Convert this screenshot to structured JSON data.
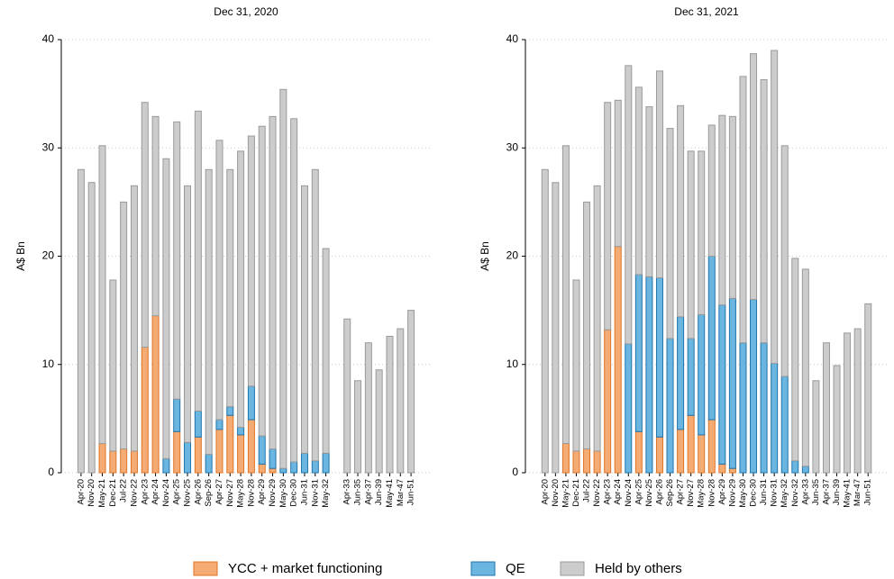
{
  "chart_data": [
    {
      "type": "bar",
      "stacked": true,
      "title": "Dec 31, 2020",
      "y_label": "A$ Bn",
      "categories": [
        "Apr-20",
        "Nov-20",
        "May-21",
        "Dec-21",
        "Jul-22",
        "Nov-22",
        "Apr-23",
        "Apr-24",
        "Nov-24",
        "Apr-25",
        "Nov-25",
        "Apr-26",
        "Sep-26",
        "Apr-27",
        "Nov-27",
        "May-28",
        "Nov-28",
        "Apr-29",
        "Nov-29",
        "May-30",
        "Dec-30",
        "Jun-31",
        "Nov-31",
        "May-32",
        null,
        "Apr-33",
        "Jun-35",
        "Apr-37",
        "Jun-39",
        "May-41",
        "Mar-47",
        "Jun-51"
      ],
      "series": [
        {
          "name": "YCC + market functioning",
          "color": "#f4ab74",
          "edgecolor": "#e07526",
          "values": [
            0,
            0,
            2.7,
            2.0,
            2.2,
            2.0,
            11.6,
            14.5,
            0,
            3.8,
            0,
            3.3,
            0,
            4.0,
            5.3,
            3.5,
            4.9,
            0.8,
            0.4,
            0,
            0,
            0,
            0,
            0,
            null,
            0,
            0,
            0,
            0,
            0,
            0,
            0
          ]
        },
        {
          "name": "QE",
          "color": "#6bb6e0",
          "edgecolor": "#1f74ad",
          "values": [
            0,
            0,
            0,
            0,
            0,
            0,
            0,
            0,
            1.3,
            3.0,
            2.8,
            2.4,
            1.7,
            0.9,
            0.8,
            0.7,
            3.1,
            2.6,
            1.8,
            0.4,
            1.0,
            1.8,
            1.1,
            1.8,
            null,
            0,
            0,
            0,
            0,
            0,
            0,
            0
          ]
        },
        {
          "name": "Held by others",
          "color": "#cccccc",
          "edgecolor": "#9a9a9a",
          "values": [
            28,
            26.8,
            27.5,
            15.8,
            22.8,
            24.5,
            22.6,
            18.4,
            27.7,
            25.6,
            23.7,
            27.7,
            26.3,
            25.8,
            21.9,
            25.5,
            23.1,
            28.6,
            30.7,
            35,
            31.7,
            24.7,
            26.9,
            18.9,
            null,
            14.2,
            8.5,
            12,
            9.5,
            12.6,
            13.3,
            15
          ]
        }
      ],
      "ylim": [
        0,
        40
      ],
      "yticks": [
        0,
        10,
        20,
        30,
        40
      ],
      "grid": true
    },
    {
      "type": "bar",
      "stacked": true,
      "title": "Dec 31, 2021",
      "y_label": "A$ Bn",
      "categories": [
        "Apr-20",
        "Nov-20",
        "May-21",
        "Dec-21",
        "Jul-22",
        "Nov-22",
        "Apr-23",
        "Apr-24",
        "Nov-24",
        "Apr-25",
        "Nov-25",
        "Apr-26",
        "Sep-26",
        "Apr-27",
        "Nov-27",
        "May-28",
        "Nov-28",
        "Apr-29",
        "Nov-29",
        "May-30",
        "Dec-30",
        "Jun-31",
        "Nov-31",
        "May-32",
        "Nov-32",
        "Apr-33",
        "Jun-35",
        "Apr-37",
        "Jun-39",
        "May-41",
        "Mar-47",
        "Jun-51"
      ],
      "series": [
        {
          "name": "YCC + market functioning",
          "color": "#f4ab74",
          "edgecolor": "#e07526",
          "values": [
            0,
            0,
            2.7,
            2.0,
            2.2,
            2.0,
            13.2,
            20.9,
            0,
            3.8,
            0,
            3.3,
            0,
            4.0,
            5.3,
            3.5,
            4.9,
            0.8,
            0.4,
            0,
            0,
            0,
            0,
            0,
            0,
            0,
            0,
            0,
            0,
            0,
            0,
            0
          ]
        },
        {
          "name": "QE",
          "color": "#6bb6e0",
          "edgecolor": "#1f74ad",
          "values": [
            0,
            0,
            0,
            0,
            0,
            0,
            0,
            0,
            11.9,
            14.5,
            18.1,
            14.7,
            12.4,
            10.4,
            7.1,
            11.1,
            15.1,
            14.7,
            15.7,
            12.0,
            16.0,
            12.0,
            10.1,
            8.9,
            1.1,
            0.6,
            0,
            0,
            0,
            0,
            0,
            0
          ]
        },
        {
          "name": "Held by others",
          "color": "#cccccc",
          "edgecolor": "#9a9a9a",
          "values": [
            28,
            26.8,
            27.5,
            15.8,
            22.8,
            24.5,
            21,
            13.5,
            25.7,
            17.3,
            15.7,
            19.1,
            19.4,
            19.5,
            17.3,
            15.1,
            12.1,
            17.5,
            16.8,
            24.6,
            22.7,
            24.3,
            28.9,
            21.3,
            18.7,
            18.2,
            8.5,
            12,
            9.9,
            12.9,
            13.3,
            15.6
          ]
        }
      ],
      "ylim": [
        0,
        40
      ],
      "yticks": [
        0,
        10,
        20,
        30,
        40
      ],
      "grid": true
    }
  ]
}
